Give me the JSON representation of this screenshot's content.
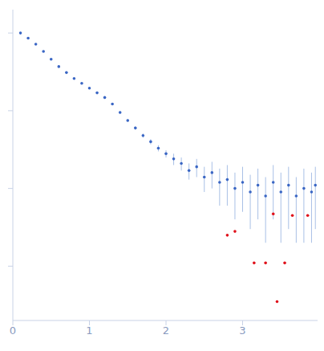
{
  "chart_data": {
    "type": "scatter",
    "log": "y",
    "tick_labels": "x",
    "grid": false,
    "xlim": [
      0,
      4
    ],
    "xticks": [
      0,
      1,
      2,
      3
    ],
    "ylim": [
      0.0002,
      2
    ],
    "yticks": [
      0.001,
      0.01,
      0.1,
      1
    ],
    "series": [
      {
        "color": "#3a66c4",
        "x": [
          0.1,
          0.2,
          0.3,
          0.4,
          0.5,
          0.6,
          0.7,
          0.8,
          0.9,
          1.0,
          1.1,
          1.2,
          1.3,
          1.4,
          1.5,
          1.6,
          1.7,
          1.8,
          1.9,
          2.0,
          2.1,
          2.2,
          2.3,
          2.4,
          2.5,
          2.6,
          2.7,
          2.8,
          2.9,
          3.0,
          3.1,
          3.2,
          3.3,
          3.4,
          3.5,
          3.6,
          3.7,
          3.8,
          3.9,
          3.95
        ],
        "values": [
          1.0,
          0.86,
          0.72,
          0.58,
          0.46,
          0.37,
          0.31,
          0.26,
          0.225,
          0.195,
          0.17,
          0.148,
          0.122,
          0.095,
          0.075,
          0.06,
          0.048,
          0.04,
          0.033,
          0.028,
          0.024,
          0.021,
          0.017,
          0.019,
          0.014,
          0.016,
          0.012,
          0.013,
          0.01,
          0.012,
          0.009,
          0.011,
          0.008,
          0.012,
          0.009,
          0.011,
          0.008,
          0.01,
          0.009,
          0.011
        ],
        "errors": [
          0.03,
          0.02,
          0.015,
          0.012,
          0.01,
          0.008,
          0.007,
          0.006,
          0.005,
          0.005,
          0.004,
          0.004,
          0.004,
          0.004,
          0.003,
          0.003,
          0.003,
          0.003,
          0.003,
          0.003,
          0.004,
          0.004,
          0.004,
          0.005,
          0.005,
          0.006,
          0.006,
          0.007,
          0.006,
          0.007,
          0.006,
          0.007,
          0.006,
          0.008,
          0.007,
          0.008,
          0.006,
          0.008,
          0.007,
          0.008
        ]
      },
      {
        "color": "#e0101a",
        "x": [
          2.8,
          2.9,
          3.15,
          3.3,
          3.4,
          3.45,
          3.55,
          3.65,
          3.85
        ],
        "values": [
          0.0025,
          0.0028,
          0.0011,
          0.0011,
          0.0047,
          0.00035,
          0.0011,
          0.0045,
          0.0045
        ]
      }
    ]
  }
}
